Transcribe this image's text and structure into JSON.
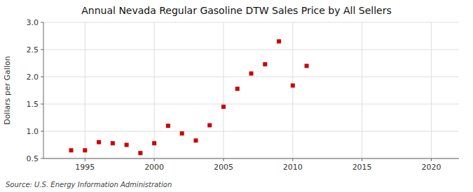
{
  "chart_data": {
    "type": "scatter",
    "title": "Annual Nevada Regular Gasoline DTW Sales Price by All Sellers",
    "y_label": "Dollars per Gallon",
    "source": "Source: U.S. Energy Information Administration",
    "x": [
      1994,
      1995,
      1996,
      1997,
      1998,
      1999,
      2000,
      2001,
      2002,
      2003,
      2004,
      2005,
      2006,
      2007,
      2008,
      2009,
      2010,
      2011
    ],
    "values": [
      0.65,
      0.65,
      0.8,
      0.78,
      0.75,
      0.6,
      0.78,
      1.1,
      0.96,
      0.83,
      1.11,
      1.45,
      1.78,
      2.06,
      2.23,
      2.65,
      1.84,
      2.2
    ],
    "color": "#cc0000",
    "marker": "square",
    "xlim": [
      1992,
      2022
    ],
    "ylim": [
      0.5,
      3.0
    ],
    "xticks": [
      1995,
      2000,
      2005,
      2010,
      2015,
      2020
    ],
    "yticks": [
      0.5,
      {
        "value": 1.0,
        "label": "1.0"
      },
      1.5,
      {
        "value": 2.0,
        "label": "2.0"
      },
      2.5,
      {
        "value": 3.0,
        "label": "3.0"
      }
    ],
    "grid": true
  }
}
